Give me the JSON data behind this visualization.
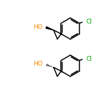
{
  "bg_color": "#ffffff",
  "line_color": "#000000",
  "atom_colors": {
    "O": "#ff8c00",
    "Cl": "#00aa00"
  },
  "fig_size": [
    1.52,
    1.52
  ],
  "dpi": 100
}
